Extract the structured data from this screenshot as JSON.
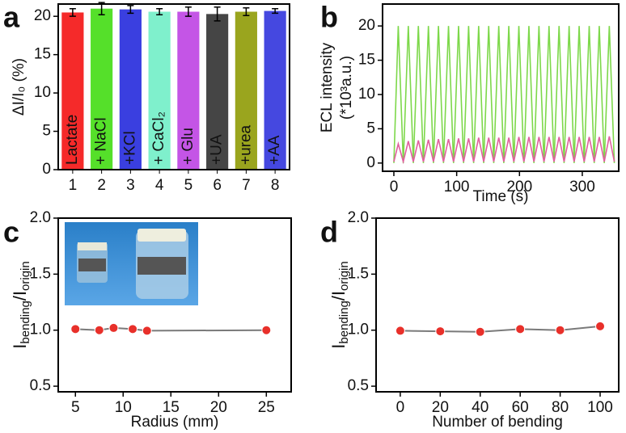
{
  "chart_data": [
    {
      "type": "bar",
      "panel_label": "a",
      "ylabel": "ΔI/I₀ (%)",
      "categories": [
        "1",
        "2",
        "3",
        "4",
        "5",
        "6",
        "7",
        "8"
      ],
      "bar_labels": [
        "Lactate",
        "+ NaCl",
        "+KCl",
        "+ CaCl₂",
        "+ Glu",
        "+UA",
        "+urea",
        "+AA"
      ],
      "values": [
        20.5,
        21.0,
        20.9,
        20.6,
        20.6,
        20.3,
        20.6,
        20.7
      ],
      "errors": [
        0.5,
        0.8,
        0.5,
        0.4,
        0.6,
        0.9,
        0.5,
        0.3
      ],
      "colors": [
        "#f52a2a",
        "#55e02a",
        "#3a3fe0",
        "#7ff0cc",
        "#c455e6",
        "#454545",
        "#9aa51e",
        "#4548e0"
      ],
      "ylim": [
        0,
        21.6
      ],
      "yticks": [
        0,
        5,
        10,
        15,
        20
      ]
    },
    {
      "type": "line",
      "panel_label": "b",
      "ylabel": [
        "ECL intensity",
        "(*10³a.u.)"
      ],
      "xlabel": "Time (s)",
      "x": [
        0,
        7,
        15,
        23,
        31,
        39,
        47,
        55,
        63,
        71,
        79,
        87,
        95,
        103,
        111,
        119,
        127,
        135,
        143,
        151,
        159,
        167,
        175,
        183,
        191,
        199,
        207,
        215,
        223,
        231,
        239,
        247,
        255,
        263,
        271,
        279,
        287,
        295,
        303,
        311,
        319,
        327,
        335,
        343,
        351
      ],
      "series": [
        {
          "color": "#7dd84a",
          "values": [
            0,
            20,
            0,
            20,
            0,
            20,
            0,
            20,
            0,
            20,
            0,
            20,
            0,
            20,
            0,
            20,
            0,
            20,
            0,
            20,
            0,
            20,
            0,
            20,
            0,
            20,
            0,
            20,
            0,
            20,
            0,
            20,
            0,
            20,
            0,
            20,
            0,
            20,
            0,
            20,
            0,
            20,
            0,
            20,
            0
          ]
        },
        {
          "color": "#e0609e",
          "values": [
            0.2,
            2.8,
            0.2,
            3.2,
            0.2,
            3.3,
            0.2,
            3.4,
            0.2,
            3.5,
            0.2,
            3.5,
            0.2,
            3.6,
            0.2,
            3.6,
            0.2,
            3.7,
            0.2,
            3.7,
            0.2,
            3.7,
            0.2,
            3.7,
            0.2,
            3.8,
            0.2,
            3.8,
            0.2,
            3.8,
            0.2,
            3.8,
            0.2,
            3.8,
            0.2,
            3.8,
            0.2,
            3.8,
            0.2,
            3.8,
            0.2,
            3.8,
            0.2,
            3.9,
            0.2
          ]
        }
      ],
      "xlim": [
        -18,
        358
      ],
      "xticks": [
        0,
        100,
        200,
        300
      ],
      "ylim": [
        -1.2,
        23.2
      ],
      "yticks": [
        0,
        5,
        10,
        15,
        20
      ]
    },
    {
      "type": "line",
      "panel_label": "c",
      "ylabel": [
        "I",
        "bending",
        "/I",
        "origin"
      ],
      "xlabel": "Radius (mm)",
      "x": [
        5,
        7.5,
        9,
        11,
        12.5,
        25
      ],
      "series": [
        {
          "color": "#7a7a7a",
          "marker_color": "#e8302a",
          "values": [
            1.01,
            1.0,
            1.02,
            1.01,
            0.995,
            1.0
          ]
        }
      ],
      "xlim": [
        3.2,
        27.6
      ],
      "xticks": [
        5,
        10,
        15,
        20,
        25
      ],
      "ylim": [
        0.45,
        2.0
      ],
      "yticks": [
        {
          "value": 0.5,
          "label": "0.5"
        },
        {
          "value": 1,
          "label": "1.0"
        },
        {
          "value": 1.5,
          "label": "1.5"
        },
        {
          "value": 2,
          "label": "2.0"
        }
      ]
    },
    {
      "type": "line",
      "panel_label": "d",
      "ylabel": [
        "I",
        "bending",
        "/I",
        "origin"
      ],
      "xlabel": "Number of bending",
      "x": [
        0,
        20,
        40,
        60,
        80,
        100
      ],
      "series": [
        {
          "color": "#7a7a7a",
          "marker_color": "#e8302a",
          "values": [
            0.995,
            0.99,
            0.985,
            1.01,
            1.0,
            1.035
          ]
        }
      ],
      "xlim": [
        -12.1,
        109.3
      ],
      "xticks": [
        0,
        20,
        40,
        60,
        80,
        100
      ],
      "ylim": [
        0.45,
        2.0
      ],
      "yticks": [
        {
          "value": 0.5,
          "label": "0.5"
        },
        {
          "value": 1,
          "label": "1.0"
        },
        {
          "value": 1.5,
          "label": "1.5"
        },
        {
          "value": 2,
          "label": "2.0"
        }
      ]
    }
  ]
}
